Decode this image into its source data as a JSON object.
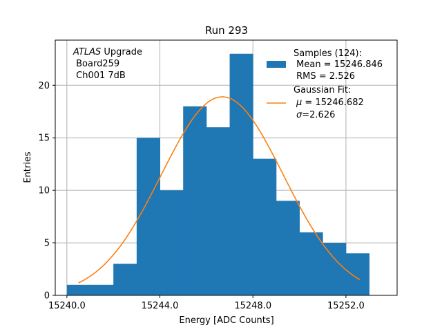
{
  "chart_data": {
    "type": "bar",
    "title": "Run 293",
    "xlabel": "Energy [ADC Counts]",
    "ylabel": "Entries",
    "xlim": [
      15239.5,
      15254.2
    ],
    "ylim": [
      0,
      24.3
    ],
    "xticks": [
      15240.0,
      15244.0,
      15248.0,
      15252.0
    ],
    "xtick_labels": [
      "15240.0",
      "15244.0",
      "15248.0",
      "15252.0"
    ],
    "yticks": [
      0,
      5,
      10,
      15,
      20
    ],
    "ytick_labels": [
      "0",
      "5",
      "10",
      "15",
      "20"
    ],
    "grid": true,
    "bin_edges": [
      15240.0,
      15241.0,
      15242.0,
      15243.0,
      15244.0,
      15245.0,
      15246.0,
      15247.0,
      15248.0,
      15249.0,
      15250.0,
      15251.0,
      15252.0,
      15253.0
    ],
    "counts": [
      1,
      1,
      3,
      15,
      10,
      18,
      16,
      23,
      13,
      9,
      6,
      5,
      4
    ],
    "fit": {
      "type": "gaussian",
      "mu": 15246.682,
      "sigma": 2.626,
      "amplitude": 18.9,
      "x_range": [
        15240.5,
        15252.6
      ]
    },
    "annotation": {
      "line1_italic": "ATLAS",
      "line1_rest": " Upgrade",
      "line2": " Board259",
      "line3": " Ch001 7dB"
    },
    "legend": {
      "placement": "top-right",
      "samples_line1": "Samples (124):",
      "samples_line2": " Mean = 15246.846",
      "samples_line3": " RMS = 2.526",
      "fit_line1": "Gaussian Fit:",
      "fit_mu_symbol": "μ",
      "fit_mu_rest": " = 15246.682",
      "fit_sigma_symbol": "σ",
      "fit_sigma_rest": "=2.626"
    },
    "colors": {
      "bars": "#1f77b4",
      "fit": "#ff7f0e",
      "grid": "#b0b0b0"
    }
  }
}
